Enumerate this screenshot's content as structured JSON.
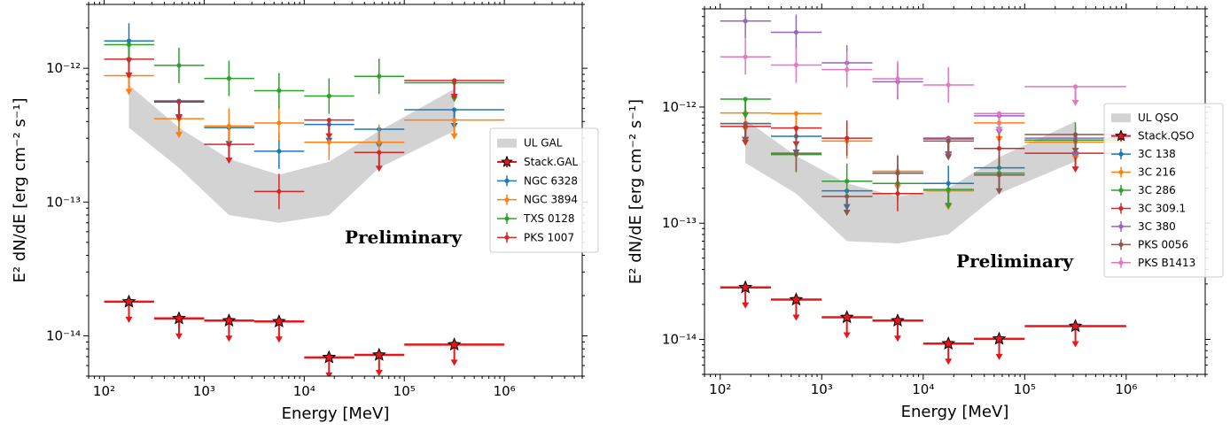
{
  "chart_data": [
    {
      "type": "scatter",
      "x_scale": "log",
      "y_scale": "log",
      "xlim": [
        70,
        6000000
      ],
      "ylim": [
        5e-15,
        3e-12
      ],
      "xlabel": "Energy [MeV]",
      "ylabel": "E² dN/dE [erg cm⁻² s⁻¹]",
      "xticks": [
        {
          "value": 100,
          "label": "10²"
        },
        {
          "value": 1000,
          "label": "10³"
        },
        {
          "value": 10000,
          "label": "10⁴"
        },
        {
          "value": 100000,
          "label": "10⁵"
        },
        {
          "value": 1000000,
          "label": "10⁶"
        }
      ],
      "yticks": [
        {
          "value": 1e-14,
          "label": "10⁻¹⁴"
        },
        {
          "value": 1e-13,
          "label": "10⁻¹³"
        },
        {
          "value": 1e-12,
          "label": "10⁻¹²"
        }
      ],
      "annotation": "Preliminary",
      "legend_position": "center-right",
      "band": {
        "name": "UL GAL",
        "color": "#d3d3d3",
        "x": [
          177,
          560,
          1770,
          5600,
          17700,
          56000,
          316000
        ],
        "lower": [
          3.6e-13,
          1.8e-13,
          8e-14,
          7e-14,
          8e-14,
          1.8e-13,
          3.4e-13
        ],
        "upper": [
          7.5e-13,
          3.6e-13,
          2.1e-13,
          1.6e-13,
          2e-13,
          3.4e-13,
          7e-13
        ]
      },
      "stack": {
        "name": "Stack.GAL",
        "color": "#e8161c",
        "points": [
          {
            "x": 177,
            "xlo": 100,
            "xhi": 316,
            "y": 1.8e-14
          },
          {
            "x": 560,
            "xlo": 316,
            "xhi": 1000,
            "y": 1.35e-14
          },
          {
            "x": 1770,
            "xlo": 1000,
            "xhi": 3160,
            "y": 1.3e-14
          },
          {
            "x": 5600,
            "xlo": 3160,
            "xhi": 10000,
            "y": 1.28e-14
          },
          {
            "x": 17700,
            "xlo": 10000,
            "xhi": 31600,
            "y": 6.9e-15
          },
          {
            "x": 56000,
            "xlo": 31600,
            "xhi": 100000,
            "y": 7.2e-15
          },
          {
            "x": 316000,
            "xlo": 100000,
            "xhi": 1000000,
            "y": 8.6e-15
          }
        ]
      },
      "series": [
        {
          "name": "NGC 6328",
          "color": "#1f77b4",
          "points": [
            {
              "x": 177,
              "xlo": 100,
              "xhi": 316,
              "y": 1.6e-12,
              "ul": false
            },
            {
              "x": 560,
              "xlo": 316,
              "xhi": 1000,
              "y": 5.7e-13,
              "ul": true
            },
            {
              "x": 1770,
              "xlo": 1000,
              "xhi": 3160,
              "y": 3.6e-13,
              "ul": true
            },
            {
              "x": 5600,
              "xlo": 3160,
              "xhi": 10000,
              "y": 2.4e-13,
              "ul": false
            },
            {
              "x": 17700,
              "xlo": 10000,
              "xhi": 31600,
              "y": 3.8e-13,
              "ul": true
            },
            {
              "x": 56000,
              "xlo": 31600,
              "xhi": 100000,
              "y": 3.5e-13,
              "ul": true
            },
            {
              "x": 316000,
              "xlo": 100000,
              "xhi": 1000000,
              "y": 4.9e-13,
              "ul": true
            }
          ]
        },
        {
          "name": "NGC 3894",
          "color": "#ff7f0e",
          "points": [
            {
              "x": 177,
              "xlo": 100,
              "xhi": 316,
              "y": 8.8e-13,
              "ul": true
            },
            {
              "x": 560,
              "xlo": 316,
              "xhi": 1000,
              "y": 4.2e-13,
              "ul": true
            },
            {
              "x": 1770,
              "xlo": 1000,
              "xhi": 3160,
              "y": 3.7e-13,
              "ul": false
            },
            {
              "x": 5600,
              "xlo": 3160,
              "xhi": 10000,
              "y": 3.9e-13,
              "ul": false
            },
            {
              "x": 17700,
              "xlo": 10000,
              "xhi": 31600,
              "y": 2.8e-13,
              "ul": false
            },
            {
              "x": 56000,
              "xlo": 31600,
              "xhi": 100000,
              "y": 2.8e-13,
              "ul": false
            },
            {
              "x": 316000,
              "xlo": 100000,
              "xhi": 1000000,
              "y": 4.1e-13,
              "ul": true
            }
          ]
        },
        {
          "name": "TXS 0128",
          "color": "#2ca02c",
          "points": [
            {
              "x": 177,
              "xlo": 100,
              "xhi": 316,
              "y": 1.5e-12,
              "ul": true
            },
            {
              "x": 560,
              "xlo": 316,
              "xhi": 1000,
              "y": 1.05e-12,
              "ul": false
            },
            {
              "x": 1770,
              "xlo": 1000,
              "xhi": 3160,
              "y": 8.4e-13,
              "ul": false
            },
            {
              "x": 5600,
              "xlo": 3160,
              "xhi": 10000,
              "y": 6.8e-13,
              "ul": false
            },
            {
              "x": 17700,
              "xlo": 10000,
              "xhi": 31600,
              "y": 6.2e-13,
              "ul": false
            },
            {
              "x": 56000,
              "xlo": 31600,
              "xhi": 100000,
              "y": 8.7e-13,
              "ul": false
            },
            {
              "x": 316000,
              "xlo": 100000,
              "xhi": 1000000,
              "y": 7.8e-13,
              "ul": true
            }
          ]
        },
        {
          "name": "PKS 1007",
          "color": "#d62728",
          "points": [
            {
              "x": 177,
              "xlo": 100,
              "xhi": 316,
              "y": 1.17e-12,
              "ul": true
            },
            {
              "x": 560,
              "xlo": 316,
              "xhi": 1000,
              "y": 5.6e-13,
              "ul": true
            },
            {
              "x": 1770,
              "xlo": 1000,
              "xhi": 3160,
              "y": 2.7e-13,
              "ul": true
            },
            {
              "x": 5600,
              "xlo": 3160,
              "xhi": 10000,
              "y": 1.2e-13,
              "ul": false
            },
            {
              "x": 17700,
              "xlo": 10000,
              "xhi": 31600,
              "y": 4.1e-13,
              "ul": true
            },
            {
              "x": 56000,
              "xlo": 31600,
              "xhi": 100000,
              "y": 2.35e-13,
              "ul": true
            },
            {
              "x": 316000,
              "xlo": 100000,
              "xhi": 1000000,
              "y": 8.1e-13,
              "ul": true
            }
          ]
        }
      ]
    },
    {
      "type": "scatter",
      "x_scale": "log",
      "y_scale": "log",
      "xlim": [
        70,
        6000000
      ],
      "ylim": [
        5e-15,
        7e-12
      ],
      "xlabel": "Energy [MeV]",
      "ylabel": "E² dN/dE [erg cm⁻² s⁻¹]",
      "xticks": [
        {
          "value": 100,
          "label": "10²"
        },
        {
          "value": 1000,
          "label": "10³"
        },
        {
          "value": 10000,
          "label": "10⁴"
        },
        {
          "value": 100000,
          "label": "10⁵"
        },
        {
          "value": 1000000,
          "label": "10⁶"
        }
      ],
      "yticks": [
        {
          "value": 1e-14,
          "label": "10⁻¹⁴"
        },
        {
          "value": 1e-13,
          "label": "10⁻¹³"
        },
        {
          "value": 1e-12,
          "label": "10⁻¹²"
        }
      ],
      "annotation": "Preliminary",
      "legend_position": "right",
      "band": {
        "name": "UL QSO",
        "color": "#d3d3d3",
        "x": [
          177,
          560,
          1770,
          5600,
          17700,
          56000,
          316000
        ],
        "lower": [
          3.3e-13,
          1.8e-13,
          7e-14,
          6.7e-14,
          8e-14,
          1.8e-13,
          3.4e-13
        ],
        "upper": [
          7.8e-13,
          3.8e-13,
          2.2e-13,
          1.7e-13,
          2e-13,
          3.7e-13,
          7.5e-13
        ]
      },
      "stack": {
        "name": "Stack.QSO",
        "color": "#e8161c",
        "points": [
          {
            "x": 177,
            "xlo": 100,
            "xhi": 316,
            "y": 2.8e-14
          },
          {
            "x": 560,
            "xlo": 316,
            "xhi": 1000,
            "y": 2.2e-14
          },
          {
            "x": 1770,
            "xlo": 1000,
            "xhi": 3160,
            "y": 1.55e-14
          },
          {
            "x": 5600,
            "xlo": 3160,
            "xhi": 10000,
            "y": 1.45e-14
          },
          {
            "x": 17700,
            "xlo": 10000,
            "xhi": 31600,
            "y": 9.2e-15
          },
          {
            "x": 56000,
            "xlo": 31600,
            "xhi": 100000,
            "y": 1.01e-14
          },
          {
            "x": 316000,
            "xlo": 100000,
            "xhi": 1000000,
            "y": 1.3e-14
          }
        ]
      },
      "series": [
        {
          "name": "3C 138",
          "color": "#1f77b4",
          "points": [
            {
              "x": 177,
              "xlo": 100,
              "xhi": 316,
              "y": 7.2e-13,
              "ul": true
            },
            {
              "x": 560,
              "xlo": 316,
              "xhi": 1000,
              "y": 5.6e-13,
              "ul": true
            },
            {
              "x": 1770,
              "xlo": 1000,
              "xhi": 3160,
              "y": 1.9e-13,
              "ul": true
            },
            {
              "x": 5600,
              "xlo": 3160,
              "xhi": 10000,
              "y": 2.7e-13,
              "ul": false
            },
            {
              "x": 17700,
              "xlo": 10000,
              "xhi": 31600,
              "y": 2.2e-13,
              "ul": false
            },
            {
              "x": 56000,
              "xlo": 31600,
              "xhi": 100000,
              "y": 3e-13,
              "ul": false
            },
            {
              "x": 316000,
              "xlo": 100000,
              "xhi": 1000000,
              "y": 5.2e-13,
              "ul": true
            }
          ]
        },
        {
          "name": "3C 216",
          "color": "#ff7f0e",
          "points": [
            {
              "x": 177,
              "xlo": 100,
              "xhi": 316,
              "y": 8.9e-13,
              "ul": true
            },
            {
              "x": 560,
              "xlo": 316,
              "xhi": 1000,
              "y": 8.8e-13,
              "ul": true
            },
            {
              "x": 1770,
              "xlo": 1000,
              "xhi": 3160,
              "y": 5.1e-13,
              "ul": false
            },
            {
              "x": 5600,
              "xlo": 3160,
              "xhi": 10000,
              "y": 2.8e-13,
              "ul": true
            },
            {
              "x": 17700,
              "xlo": 10000,
              "xhi": 31600,
              "y": 1.9e-13,
              "ul": true
            },
            {
              "x": 56000,
              "xlo": 31600,
              "xhi": 100000,
              "y": 7.3e-13,
              "ul": true
            },
            {
              "x": 316000,
              "xlo": 100000,
              "xhi": 1000000,
              "y": 5e-13,
              "ul": true
            }
          ]
        },
        {
          "name": "3C 286",
          "color": "#2ca02c",
          "points": [
            {
              "x": 177,
              "xlo": 100,
              "xhi": 316,
              "y": 1.17e-12,
              "ul": true
            },
            {
              "x": 560,
              "xlo": 316,
              "xhi": 1000,
              "y": 3.9e-13,
              "ul": false
            },
            {
              "x": 1770,
              "xlo": 1000,
              "xhi": 3160,
              "y": 2.3e-13,
              "ul": false
            },
            {
              "x": 5600,
              "xlo": 3160,
              "xhi": 10000,
              "y": 2.2e-13,
              "ul": false
            },
            {
              "x": 17700,
              "xlo": 10000,
              "xhi": 31600,
              "y": 1.95e-13,
              "ul": true
            },
            {
              "x": 56000,
              "xlo": 31600,
              "xhi": 100000,
              "y": 2.7e-13,
              "ul": false
            },
            {
              "x": 316000,
              "xlo": 100000,
              "xhi": 1000000,
              "y": 5.2e-13,
              "ul": false
            }
          ]
        },
        {
          "name": "3C 309.1",
          "color": "#d62728",
          "points": [
            {
              "x": 177,
              "xlo": 100,
              "xhi": 316,
              "y": 6.8e-13,
              "ul": true
            },
            {
              "x": 560,
              "xlo": 316,
              "xhi": 1000,
              "y": 6.6e-13,
              "ul": true
            },
            {
              "x": 1770,
              "xlo": 1000,
              "xhi": 3160,
              "y": 5.4e-13,
              "ul": false
            },
            {
              "x": 5600,
              "xlo": 3160,
              "xhi": 10000,
              "y": 1.8e-13,
              "ul": false
            },
            {
              "x": 17700,
              "xlo": 10000,
              "xhi": 31600,
              "y": 5.4e-13,
              "ul": true
            },
            {
              "x": 56000,
              "xlo": 31600,
              "xhi": 100000,
              "y": 4.4e-13,
              "ul": false
            },
            {
              "x": 316000,
              "xlo": 100000,
              "xhi": 1000000,
              "y": 4e-13,
              "ul": true
            }
          ]
        },
        {
          "name": "3C 380",
          "color": "#9467bd",
          "points": [
            {
              "x": 177,
              "xlo": 100,
              "xhi": 316,
              "y": 5.5e-12,
              "ul": false
            },
            {
              "x": 560,
              "xlo": 316,
              "xhi": 1000,
              "y": 4.4e-12,
              "ul": false
            },
            {
              "x": 1770,
              "xlo": 1000,
              "xhi": 3160,
              "y": 2.4e-12,
              "ul": false
            },
            {
              "x": 5600,
              "xlo": 3160,
              "xhi": 10000,
              "y": 1.65e-12,
              "ul": false
            },
            {
              "x": 17700,
              "xlo": 10000,
              "xhi": 31600,
              "y": 5.3e-13,
              "ul": true
            },
            {
              "x": 56000,
              "xlo": 31600,
              "xhi": 100000,
              "y": 8.4e-13,
              "ul": true
            },
            {
              "x": 316000,
              "xlo": 100000,
              "xhi": 1000000,
              "y": 5.4e-13,
              "ul": true
            }
          ]
        },
        {
          "name": "PKS 0056",
          "color": "#8c564b",
          "points": [
            {
              "x": 177,
              "xlo": 100,
              "xhi": 316,
              "y": 7.2e-13,
              "ul": true
            },
            {
              "x": 560,
              "xlo": 316,
              "xhi": 1000,
              "y": 4e-13,
              "ul": false
            },
            {
              "x": 1770,
              "xlo": 1000,
              "xhi": 3160,
              "y": 1.7e-13,
              "ul": true
            },
            {
              "x": 5600,
              "xlo": 3160,
              "xhi": 10000,
              "y": 2.7e-13,
              "ul": false
            },
            {
              "x": 17700,
              "xlo": 10000,
              "xhi": 31600,
              "y": 5.1e-13,
              "ul": true
            },
            {
              "x": 56000,
              "xlo": 31600,
              "xhi": 100000,
              "y": 2.6e-13,
              "ul": true
            },
            {
              "x": 316000,
              "xlo": 100000,
              "xhi": 1000000,
              "y": 5.8e-13,
              "ul": true
            }
          ]
        },
        {
          "name": "PKS B1413",
          "color": "#e377c2",
          "points": [
            {
              "x": 177,
              "xlo": 100,
              "xhi": 316,
              "y": 2.7e-12,
              "ul": false
            },
            {
              "x": 560,
              "xlo": 316,
              "xhi": 1000,
              "y": 2.3e-12,
              "ul": false
            },
            {
              "x": 1770,
              "xlo": 1000,
              "xhi": 3160,
              "y": 2.1e-12,
              "ul": false
            },
            {
              "x": 5600,
              "xlo": 3160,
              "xhi": 10000,
              "y": 1.75e-12,
              "ul": false
            },
            {
              "x": 17700,
              "xlo": 10000,
              "xhi": 31600,
              "y": 1.55e-12,
              "ul": false
            },
            {
              "x": 56000,
              "xlo": 31600,
              "xhi": 100000,
              "y": 8.8e-13,
              "ul": true
            },
            {
              "x": 316000,
              "xlo": 100000,
              "xhi": 1000000,
              "y": 1.5e-12,
              "ul": true
            }
          ]
        }
      ]
    }
  ]
}
